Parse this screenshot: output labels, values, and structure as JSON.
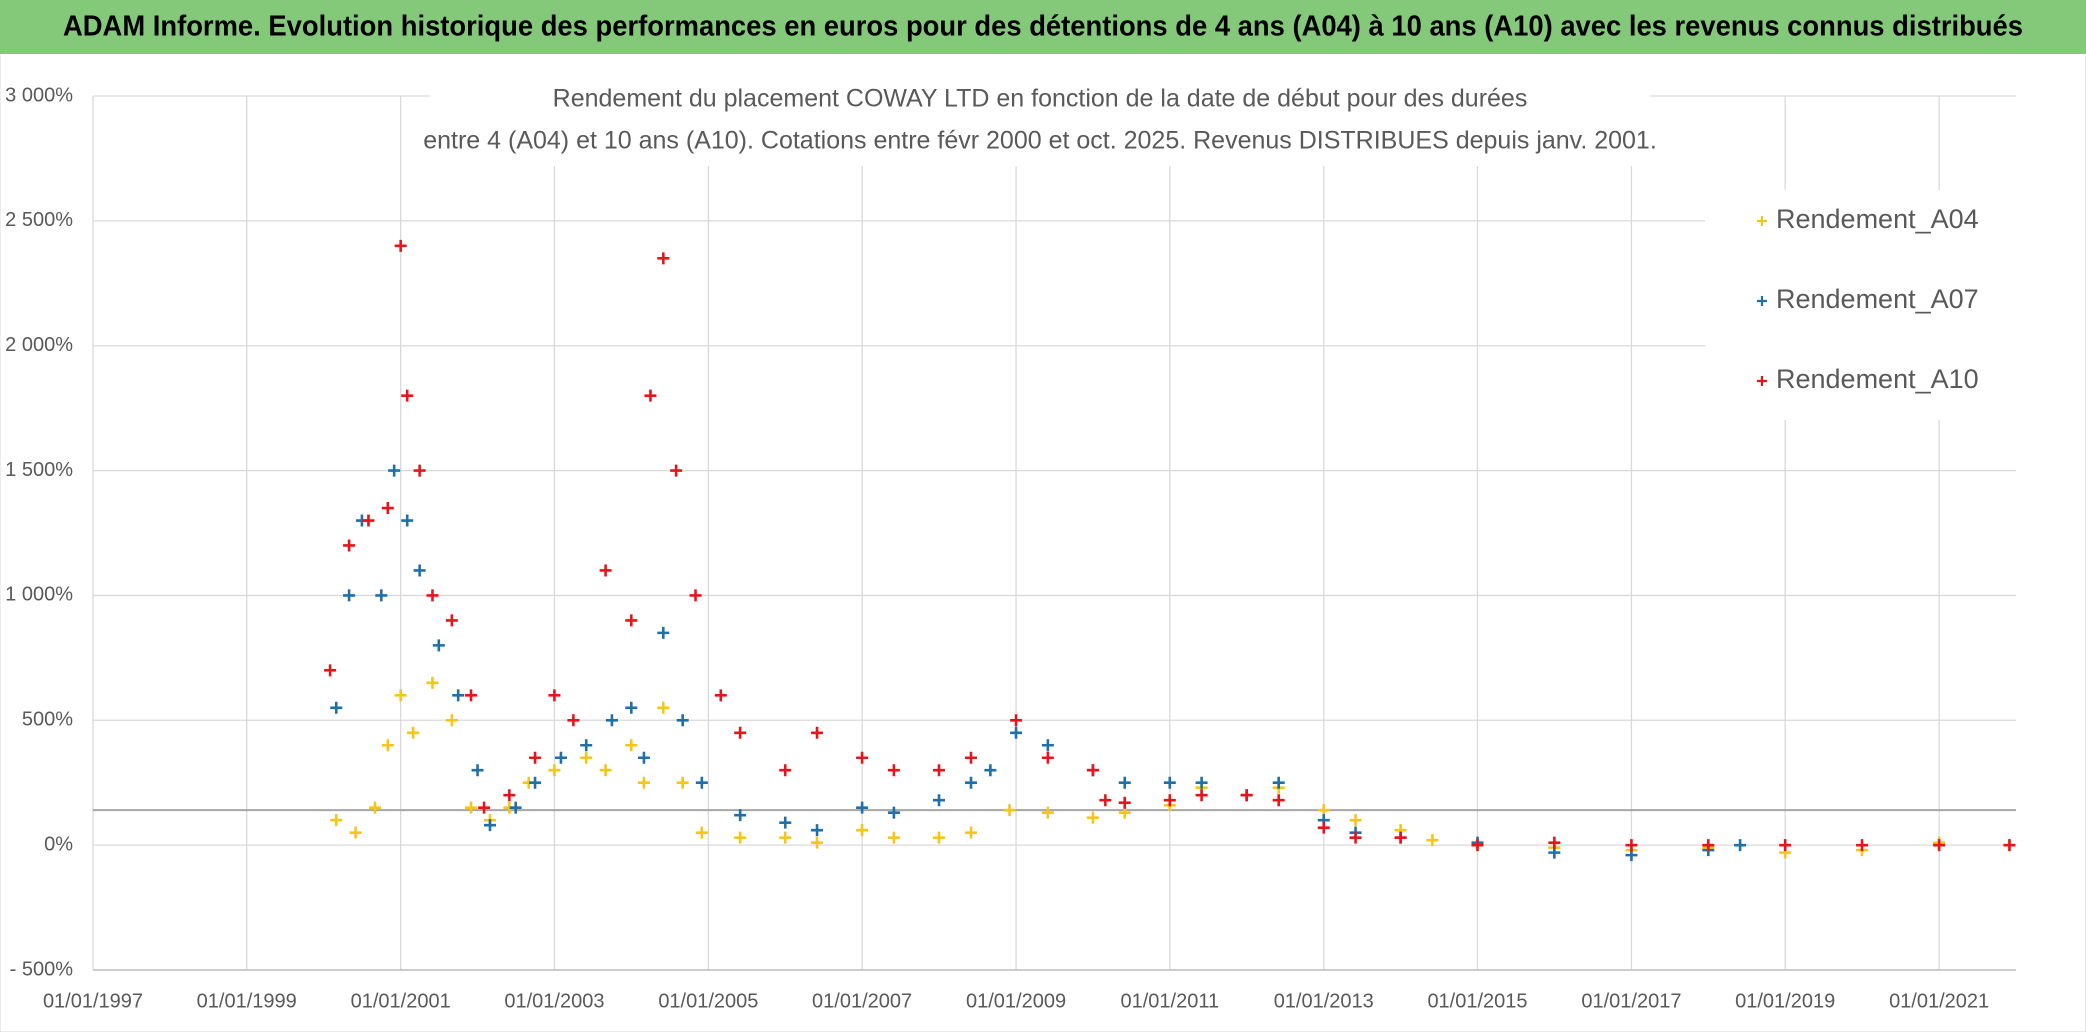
{
  "chart_data": {
    "type": "scatter",
    "title": "ADAM Informe. Evolution historique des performances en euros pour des détentions de 4 ans (A04) à 10 ans (A10) avec les revenus connus distribués",
    "subtitle": [
      "Rendement du placement COWAY LTD en fonction de la date de début pour des durées",
      "entre 4 (A04) et 10 ans (A10). Cotations entre févr 2000 et oct. 2025. Revenus DISTRIBUES depuis janv. 2001."
    ],
    "xlim": [
      "01/01/1997",
      "01/01/2022"
    ],
    "xticks": [
      "01/01/1997",
      "01/01/1999",
      "01/01/2001",
      "01/01/2003",
      "01/01/2005",
      "01/01/2007",
      "01/01/2009",
      "01/01/2011",
      "01/01/2013",
      "01/01/2015",
      "01/01/2017",
      "01/01/2019",
      "01/01/2021"
    ],
    "ylim": [
      -500,
      3000
    ],
    "yticks": [
      {
        "value": -500,
        "label": "- 500%"
      },
      {
        "value": 0,
        "label": "0%"
      },
      {
        "value": 500,
        "label": "500%"
      },
      {
        "value": 1000,
        "label": "1 000%"
      },
      {
        "value": 1500,
        "label": "1 500%"
      },
      {
        "value": 2000,
        "label": "2 000%"
      },
      {
        "value": 2500,
        "label": "2 500%"
      },
      {
        "value": 3000,
        "label": "3 000%"
      }
    ],
    "grid": true,
    "reference_line": 140,
    "legend": "right",
    "series": [
      {
        "name": "Rendement_A04",
        "color": "#f5c518",
        "x": [
          "01/03/2000",
          "01/06/2000",
          "01/09/2000",
          "01/11/2000",
          "01/01/2001",
          "01/03/2001",
          "01/06/2001",
          "01/09/2001",
          "01/12/2001",
          "01/03/2002",
          "01/06/2002",
          "01/09/2002",
          "01/01/2003",
          "01/06/2003",
          "01/09/2003",
          "01/01/2004",
          "01/03/2004",
          "01/06/2004",
          "01/09/2004",
          "01/12/2004",
          "01/06/2005",
          "01/01/2006",
          "01/06/2006",
          "01/01/2007",
          "01/06/2007",
          "01/01/2008",
          "01/06/2008",
          "01/12/2008",
          "01/06/2009",
          "01/01/2010",
          "01/06/2010",
          "01/01/2011",
          "01/06/2011",
          "01/01/2012",
          "01/06/2012",
          "01/01/2013",
          "01/06/2013",
          "01/01/2014",
          "01/06/2014",
          "01/01/2015",
          "01/01/2016",
          "01/01/2017",
          "01/01/2018",
          "01/01/2019",
          "01/01/2020",
          "01/01/2021",
          "01/12/2021"
        ],
        "values": [
          100,
          50,
          150,
          400,
          600,
          450,
          650,
          500,
          150,
          100,
          150,
          250,
          300,
          350,
          300,
          400,
          250,
          550,
          250,
          50,
          30,
          30,
          10,
          60,
          30,
          30,
          50,
          140,
          130,
          110,
          130,
          160,
          230,
          200,
          230,
          140,
          100,
          60,
          20,
          0,
          -10,
          -20,
          -10,
          -30,
          -20,
          10,
          0
        ]
      },
      {
        "name": "Rendement_A07",
        "color": "#1f6fa8",
        "x": [
          "01/03/2000",
          "01/05/2000",
          "01/07/2000",
          "01/10/2000",
          "01/12/2000",
          "01/02/2001",
          "01/04/2001",
          "01/07/2001",
          "01/10/2001",
          "01/01/2002",
          "01/03/2002",
          "01/07/2002",
          "01/10/2002",
          "01/02/2003",
          "01/06/2003",
          "01/10/2003",
          "01/01/2004",
          "01/03/2004",
          "01/06/2004",
          "01/09/2004",
          "01/12/2004",
          "01/06/2005",
          "01/01/2006",
          "01/06/2006",
          "01/01/2007",
          "01/06/2007",
          "01/01/2008",
          "01/06/2008",
          "01/09/2008",
          "01/01/2009",
          "01/06/2009",
          "01/01/2010",
          "01/06/2010",
          "01/01/2011",
          "01/06/2011",
          "01/01/2012",
          "01/06/2012",
          "01/01/2013",
          "01/06/2013",
          "01/01/2014",
          "01/01/2015",
          "01/01/2016",
          "01/01/2017",
          "01/01/2018",
          "01/06/2018"
        ],
        "values": [
          550,
          1000,
          1300,
          1000,
          1500,
          1300,
          1100,
          800,
          600,
          300,
          80,
          150,
          250,
          350,
          400,
          500,
          550,
          350,
          850,
          500,
          250,
          120,
          90,
          60,
          150,
          130,
          180,
          250,
          300,
          450,
          400,
          300,
          250,
          250,
          250,
          200,
          250,
          100,
          50,
          30,
          10,
          -30,
          -40,
          -20,
          0
        ]
      },
      {
        "name": "Rendement_A10",
        "color": "#e8141c",
        "x": [
          "01/02/2000",
          "01/05/2000",
          "01/08/2000",
          "01/11/2000",
          "01/01/2001",
          "01/02/2001",
          "01/04/2001",
          "01/06/2001",
          "01/09/2001",
          "01/12/2001",
          "01/02/2002",
          "01/06/2002",
          "01/10/2002",
          "01/01/2003",
          "01/04/2003",
          "01/09/2003",
          "01/01/2004",
          "01/04/2004",
          "01/06/2004",
          "01/08/2004",
          "01/11/2004",
          "01/03/2005",
          "01/06/2005",
          "01/01/2006",
          "01/06/2006",
          "01/01/2007",
          "01/06/2007",
          "01/01/2008",
          "01/06/2008",
          "01/01/2009",
          "01/06/2009",
          "01/01/2010",
          "01/03/2010",
          "01/06/2010",
          "01/01/2011",
          "01/06/2011",
          "01/01/2012",
          "01/06/2012",
          "01/01/2013",
          "01/06/2013",
          "01/01/2014",
          "01/01/2015",
          "01/01/2016",
          "01/01/2017",
          "01/01/2018",
          "01/01/2019",
          "01/01/2020",
          "01/01/2021",
          "01/12/2021"
        ],
        "values": [
          700,
          1200,
          1300,
          1350,
          2400,
          1800,
          1500,
          1000,
          900,
          600,
          150,
          200,
          350,
          600,
          500,
          1100,
          900,
          1800,
          2350,
          1500,
          1000,
          600,
          450,
          300,
          450,
          350,
          300,
          300,
          350,
          500,
          350,
          300,
          180,
          170,
          180,
          200,
          200,
          180,
          70,
          30,
          30,
          0,
          10,
          0,
          0,
          0,
          0,
          0,
          0
        ]
      }
    ]
  }
}
